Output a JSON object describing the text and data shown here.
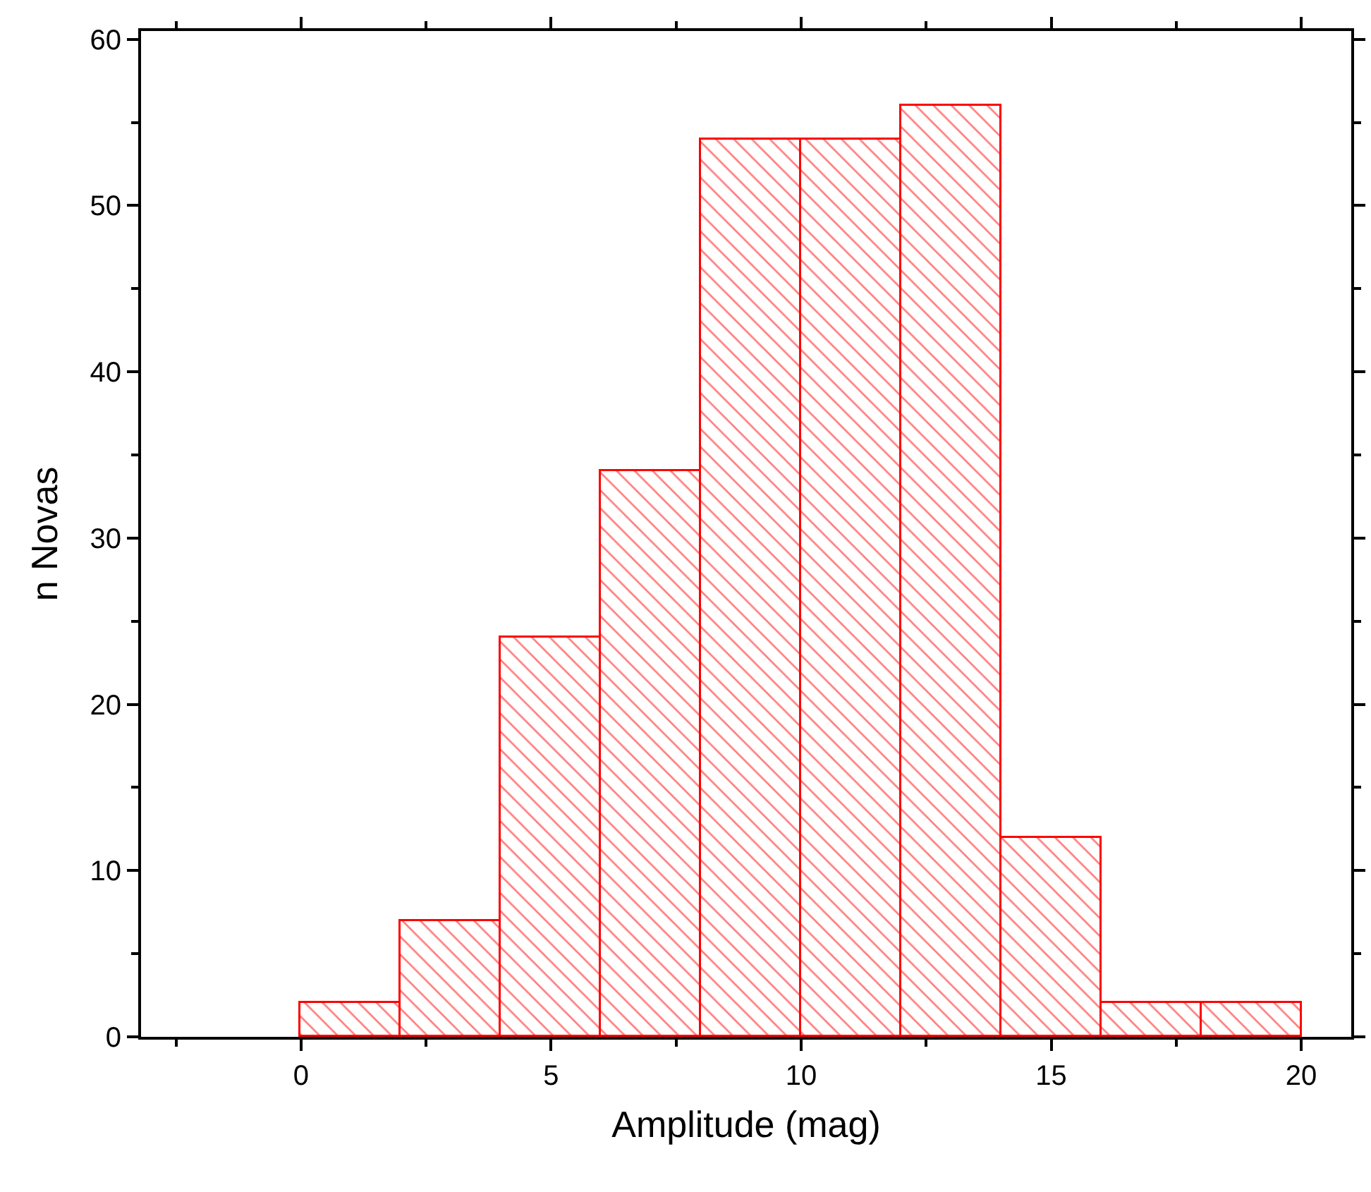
{
  "chart_data": {
    "type": "histogram",
    "xlabel": "Amplitude (mag)",
    "ylabel": "n Novas",
    "bins": [
      0,
      2,
      4,
      6,
      8,
      10,
      12,
      14,
      16,
      18,
      20
    ],
    "values": [
      2,
      7,
      24,
      34,
      54,
      54,
      56,
      12,
      2,
      2
    ],
    "color": "#ff0000",
    "xlim": [
      -3.2,
      21
    ],
    "xticks": [
      0,
      5,
      10,
      15,
      20
    ],
    "ylim": [
      0,
      60.5
    ],
    "yticks": [
      0,
      10,
      20,
      30,
      40,
      50,
      60
    ]
  }
}
